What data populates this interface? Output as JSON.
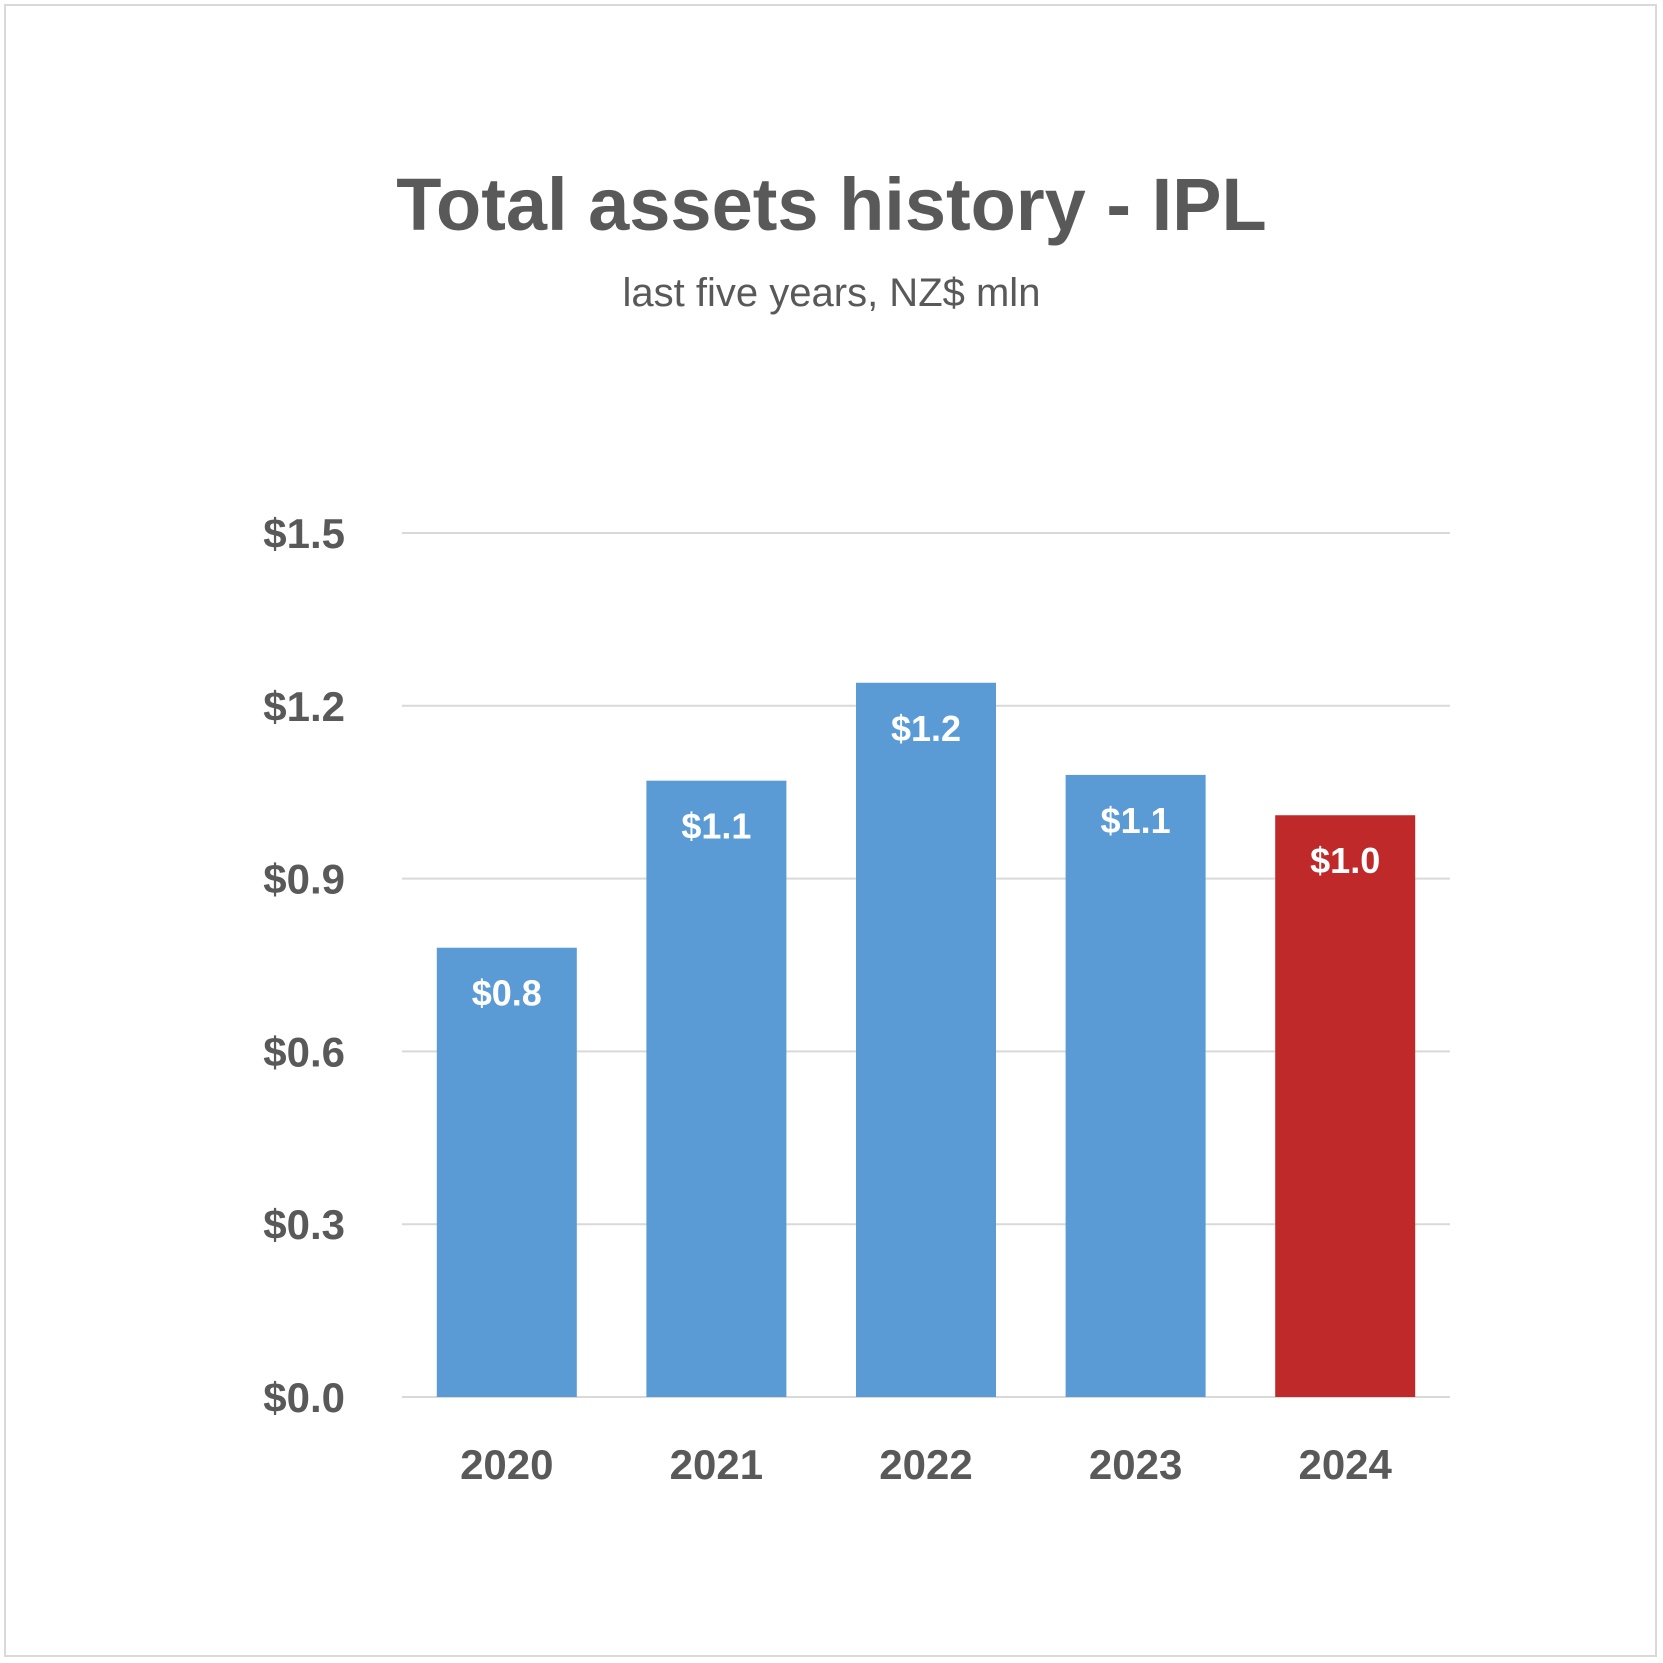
{
  "chart_data": {
    "type": "bar",
    "title": "Total assets history - IPL",
    "subtitle": "last five years, NZ$ mln",
    "xlabel": "",
    "ylabel": "",
    "categories": [
      "2020",
      "2021",
      "2022",
      "2023",
      "2024"
    ],
    "values": [
      0.78,
      1.07,
      1.24,
      1.08,
      1.01
    ],
    "data_labels": [
      "$0.8",
      "$1.1",
      "$1.2",
      "$1.1",
      "$1.0"
    ],
    "ylim": [
      0,
      1.5
    ],
    "yticks": [
      0,
      0.3,
      0.6,
      0.9,
      1.2,
      1.5
    ],
    "ytick_labels": [
      "$0.0",
      "$0.3",
      "$0.6",
      "$0.9",
      "$1.2",
      "$1.5"
    ],
    "grid": true,
    "legend": "none",
    "colors": {
      "default_bar": "#5b9bd5",
      "highlight_bar": "#c0292a",
      "gridline": "#d9d9d9",
      "text": "#595959"
    },
    "highlight_index": 4
  }
}
